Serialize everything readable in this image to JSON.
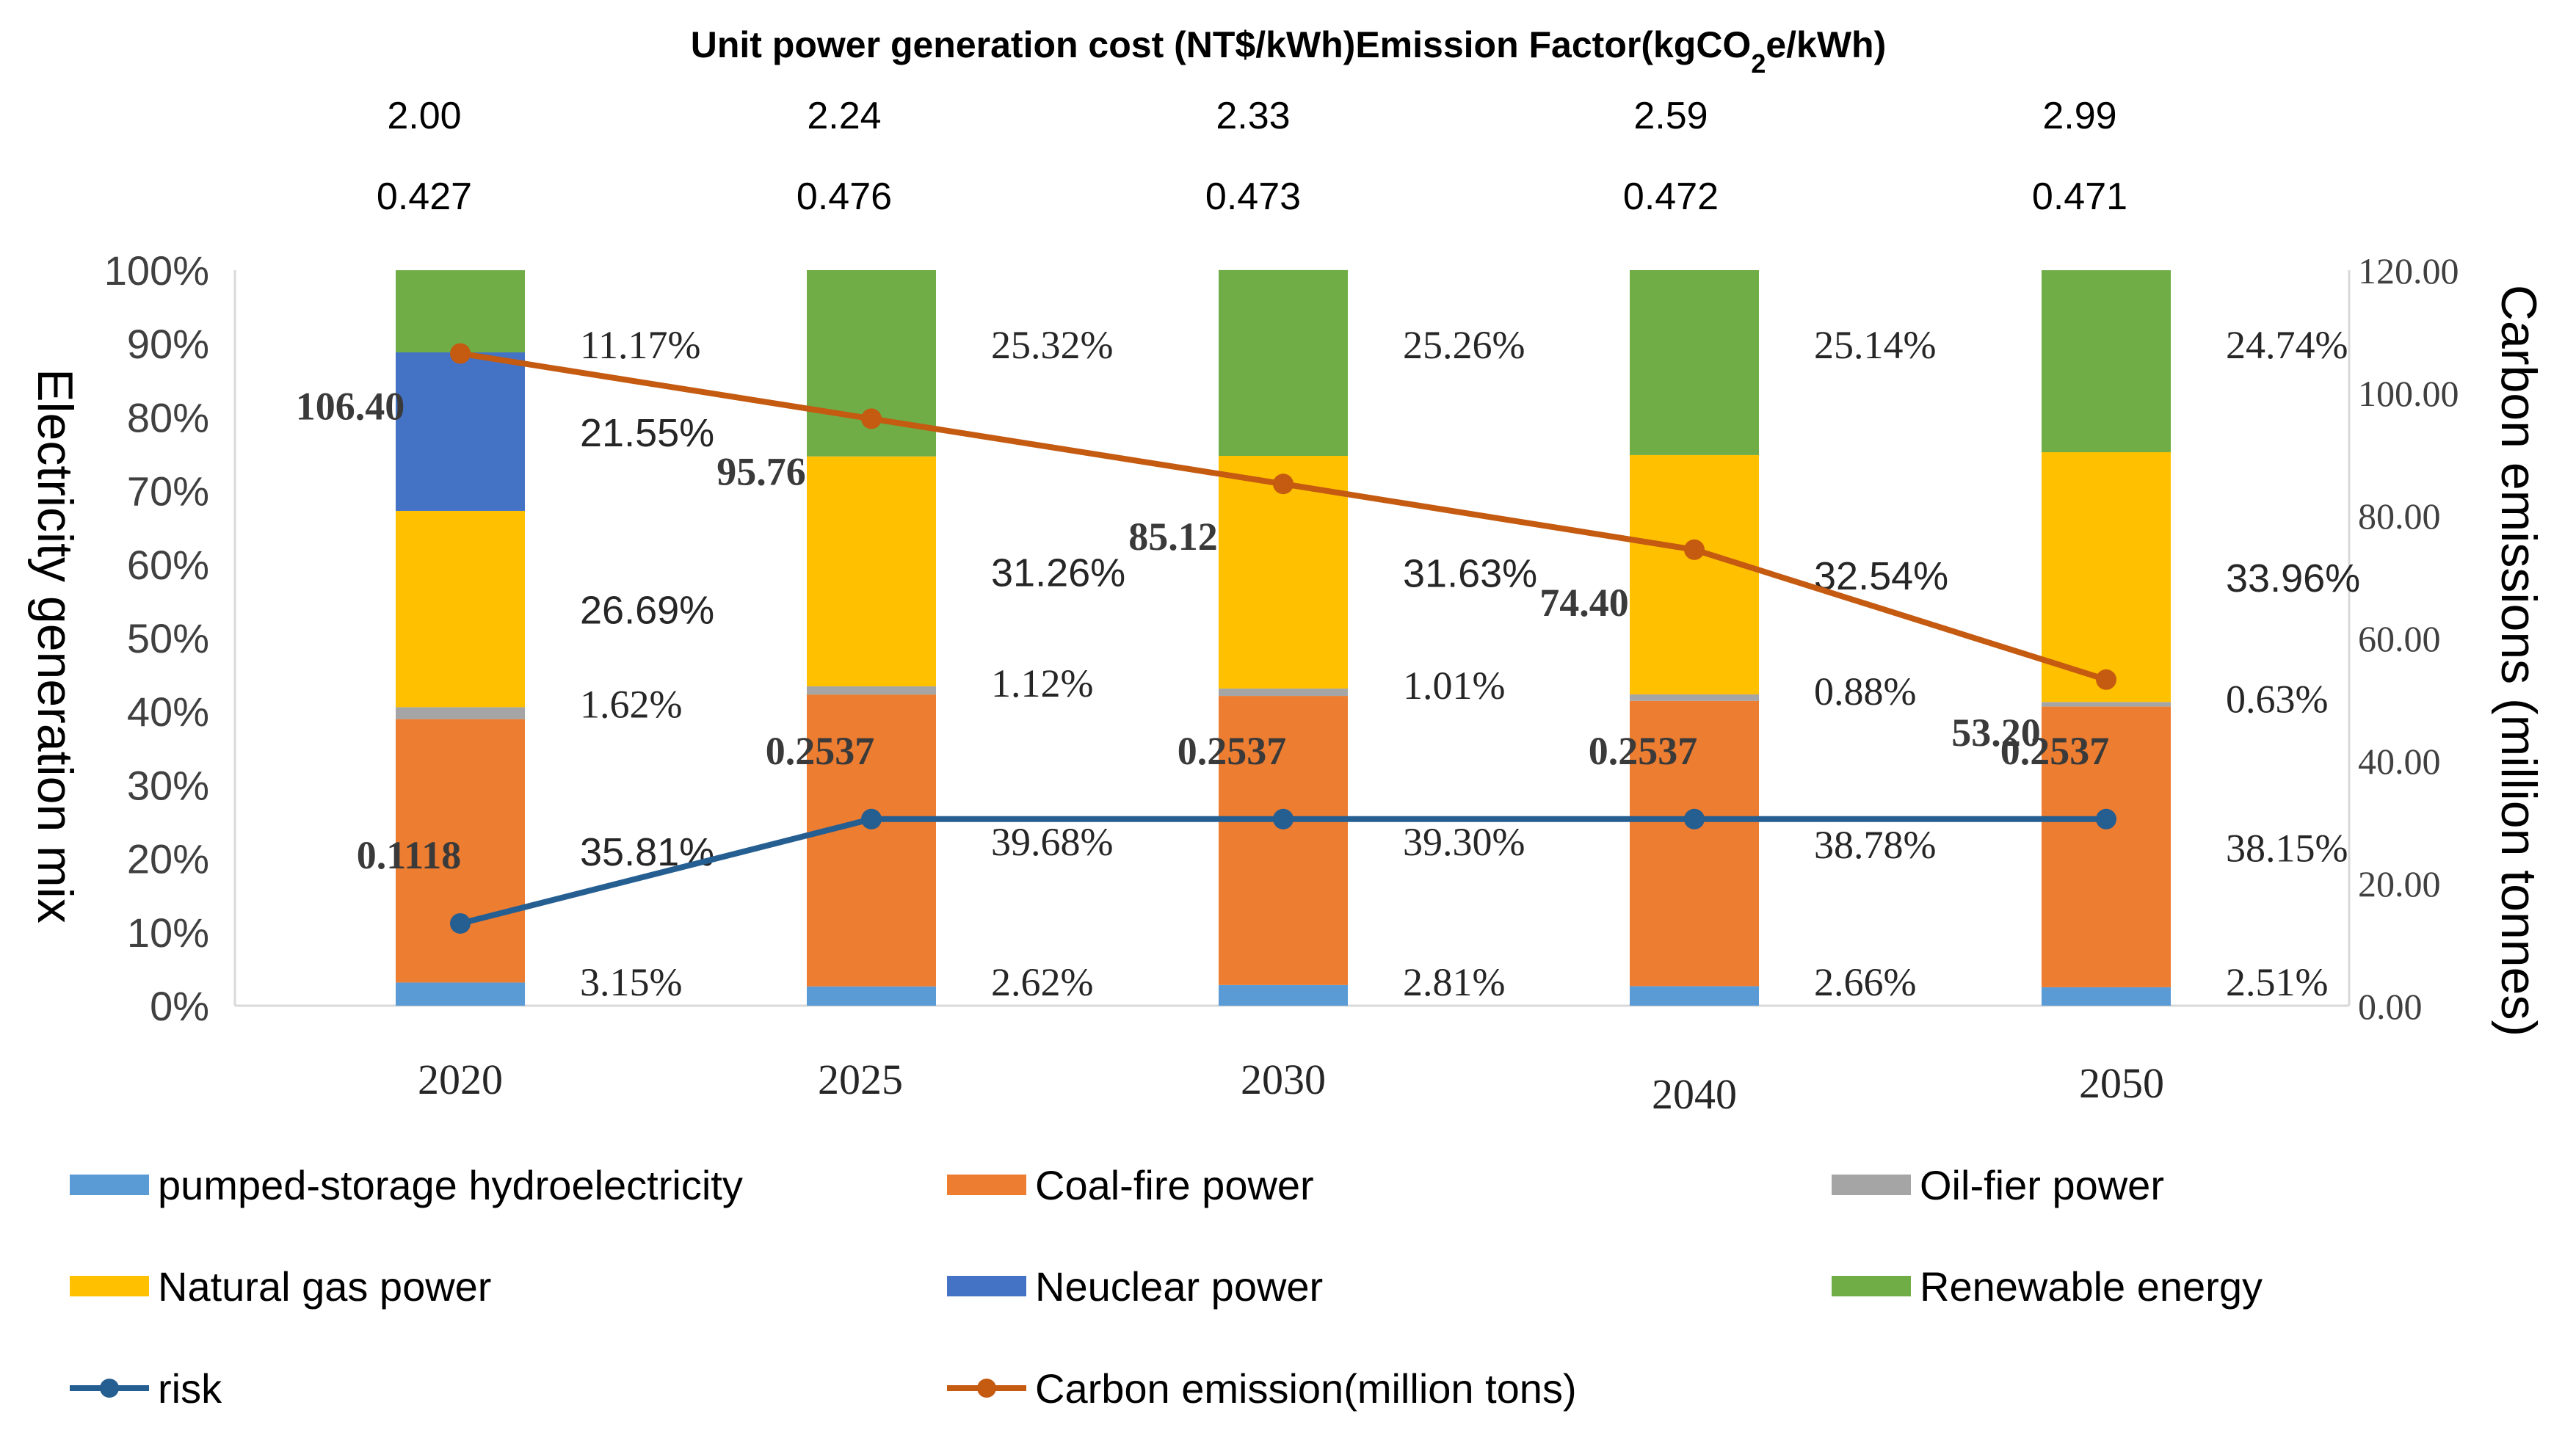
{
  "chart_data": {
    "type": "bar",
    "stacked": true,
    "top_title": "Unit power generation cost (NT$/kWh)Emission Factor(kgCO2e/kWh)",
    "ylabel_left": "Electricity generation mix",
    "ylabel_right": "Carbon emissions (million tonnes)",
    "categories": [
      "2020",
      "2025",
      "2030",
      "2040",
      "2050"
    ],
    "unit_cost": [
      "2.00",
      "2.24",
      "2.33",
      "2.59",
      "2.99"
    ],
    "emission_factor": [
      "0.427",
      "0.476",
      "0.473",
      "0.472",
      "0.471"
    ],
    "ylim_left": [
      0,
      100
    ],
    "ylim_right": [
      0,
      120
    ],
    "left_ticks": [
      "0%",
      "10%",
      "20%",
      "30%",
      "40%",
      "50%",
      "60%",
      "70%",
      "80%",
      "90%",
      "100%"
    ],
    "right_ticks": [
      "0.00",
      "20.00",
      "40.00",
      "60.00",
      "80.00",
      "100.00",
      "120.00"
    ],
    "series": [
      {
        "name": "pumped-storage hydroelectricity",
        "color": "#5b9bd5",
        "values": [
          3.15,
          2.62,
          2.81,
          2.66,
          2.51
        ],
        "labels": [
          "3.15%",
          "2.62%",
          "2.81%",
          "2.66%",
          "2.51%"
        ]
      },
      {
        "name": "Coal-fire power",
        "color": "#ed7d31",
        "values": [
          35.81,
          39.68,
          39.3,
          38.78,
          38.15
        ],
        "labels": [
          "35.81%",
          "39.68%",
          "39.30%",
          "38.78%",
          "38.15%"
        ]
      },
      {
        "name": "Oil-fier power",
        "color": "#a5a5a5",
        "values": [
          1.62,
          1.12,
          1.01,
          0.88,
          0.63
        ],
        "labels": [
          "1.62%",
          "1.12%",
          "1.01%",
          "0.88%",
          "0.63%"
        ]
      },
      {
        "name": "Natural gas power",
        "color": "#ffc000",
        "values": [
          26.69,
          31.26,
          31.63,
          32.54,
          33.96
        ],
        "labels": [
          "26.69%",
          "31.26%",
          "31.63%",
          "32.54%",
          "33.96%"
        ]
      },
      {
        "name": "Neuclear power",
        "color": "#4472c4",
        "values": [
          21.55,
          0,
          0,
          0,
          0
        ],
        "labels": [
          "21.55%",
          "",
          "",
          "",
          ""
        ]
      },
      {
        "name": "Renewable energy",
        "color": "#70ad47",
        "values": [
          11.17,
          25.32,
          25.26,
          25.14,
          24.74
        ],
        "labels": [
          "11.17%",
          "25.32%",
          "25.26%",
          "25.14%",
          "24.74%"
        ]
      }
    ],
    "lines": [
      {
        "name": "risk",
        "color": "#255e91",
        "axis": "left_fraction",
        "values": [
          0.1118,
          0.2537,
          0.2537,
          0.2537,
          0.2537
        ],
        "labels": [
          "0.1118",
          "0.2537",
          "0.2537",
          "0.2537",
          "0.2537"
        ]
      },
      {
        "name": "Carbon emission(million tons)",
        "color": "#c55a11",
        "axis": "right",
        "values": [
          106.4,
          95.76,
          85.12,
          74.4,
          53.2
        ],
        "labels": [
          "106.40",
          "95.76",
          "85.12",
          "74.40",
          "53.20"
        ]
      }
    ],
    "legend_position": "bottom"
  }
}
